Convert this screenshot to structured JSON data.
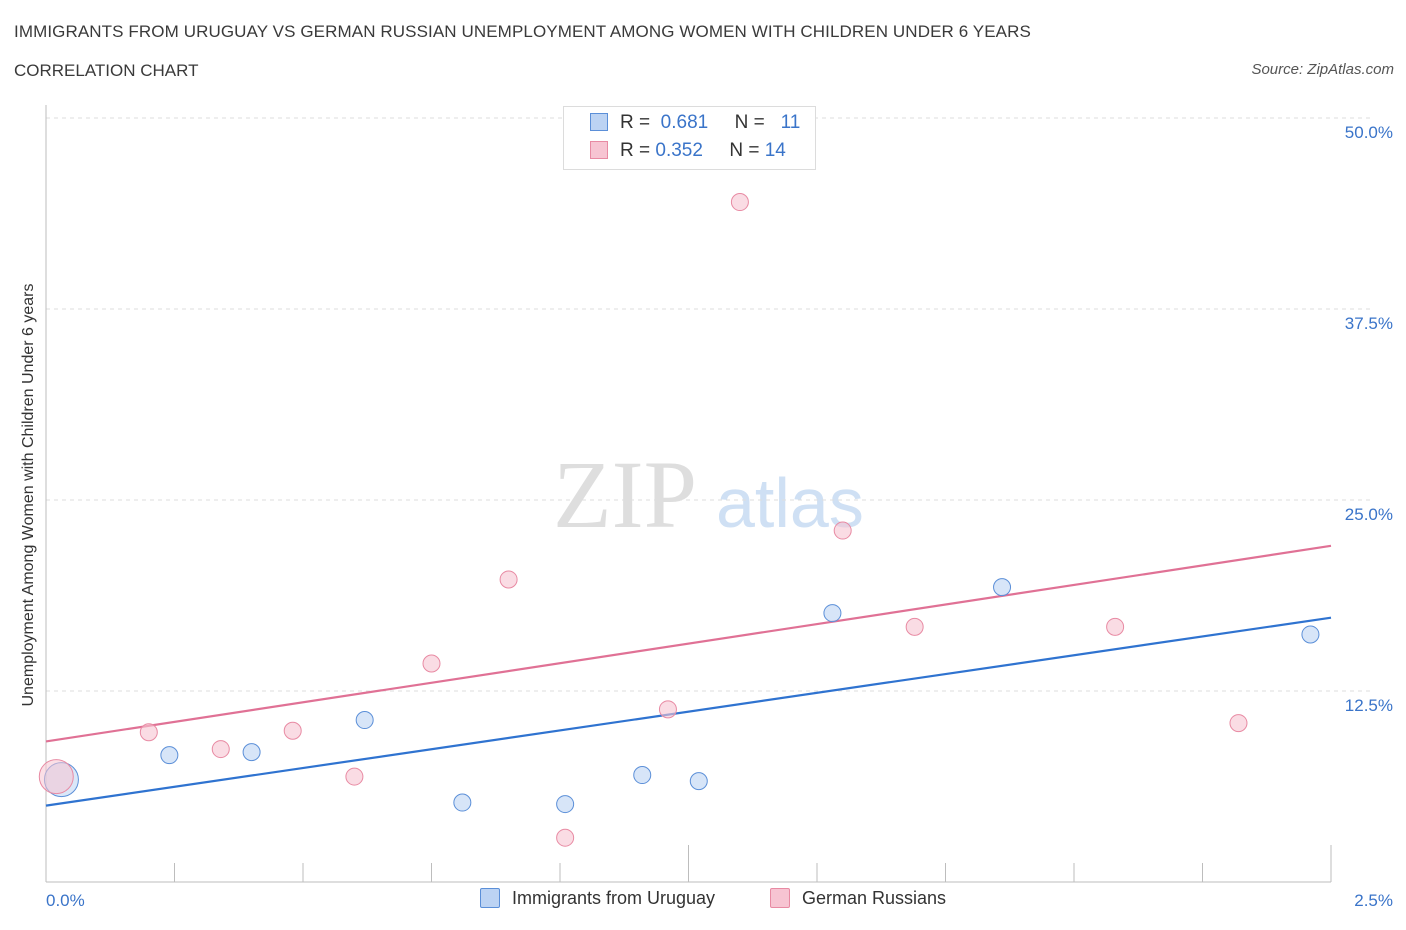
{
  "chart_data": {
    "type": "scatter",
    "title": "IMMIGRANTS FROM URUGUAY VS GERMAN RUSSIAN UNEMPLOYMENT AMONG WOMEN WITH CHILDREN UNDER 6 YEARS",
    "subtitle": "CORRELATION CHART",
    "source": "Source: ZipAtlas.com",
    "ylabel": "Unemployment Among Women with Children Under 6 years",
    "xlim": [
      0,
      2.5
    ],
    "ylim": [
      0,
      50
    ],
    "x_tick_labels": [
      "0.0%",
      "2.5%"
    ],
    "y_ticks": [
      {
        "value": 12.5,
        "label": "12.5%"
      },
      {
        "value": 25.0,
        "label": "25.0%"
      },
      {
        "value": 37.5,
        "label": "37.5%"
      },
      {
        "value": 50.0,
        "label": "50.0%"
      }
    ],
    "series": [
      {
        "name": "Immigrants from Uruguay",
        "color": "#5b8fd8",
        "fill": "#bcd3f3",
        "line_color": "#2f73d0",
        "R": "0.681",
        "N": "11",
        "points": [
          {
            "x": 0.03,
            "y": 6.7,
            "big": true
          },
          {
            "x": 0.24,
            "y": 8.3
          },
          {
            "x": 0.4,
            "y": 8.5
          },
          {
            "x": 0.62,
            "y": 10.6
          },
          {
            "x": 0.81,
            "y": 5.2
          },
          {
            "x": 1.01,
            "y": 5.1
          },
          {
            "x": 1.16,
            "y": 7.0
          },
          {
            "x": 1.27,
            "y": 6.6
          },
          {
            "x": 1.53,
            "y": 17.6
          },
          {
            "x": 1.86,
            "y": 19.3
          },
          {
            "x": 2.46,
            "y": 16.2
          }
        ],
        "trend": {
          "x0": 0.0,
          "y0": 5.0,
          "x1": 2.5,
          "y1": 17.3
        }
      },
      {
        "name": "German Russians",
        "color": "#e88aa3",
        "fill": "#f7c4d2",
        "line_color": "#e07195",
        "R": "0.352",
        "N": "14",
        "points": [
          {
            "x": 0.02,
            "y": 6.9,
            "big": true
          },
          {
            "x": 0.2,
            "y": 9.8
          },
          {
            "x": 0.34,
            "y": 8.7
          },
          {
            "x": 0.48,
            "y": 9.9
          },
          {
            "x": 0.6,
            "y": 6.9
          },
          {
            "x": 0.75,
            "y": 14.3
          },
          {
            "x": 0.9,
            "y": 19.8
          },
          {
            "x": 1.01,
            "y": 2.9
          },
          {
            "x": 1.21,
            "y": 11.3
          },
          {
            "x": 1.35,
            "y": 44.5
          },
          {
            "x": 1.55,
            "y": 23.0
          },
          {
            "x": 1.69,
            "y": 16.7
          },
          {
            "x": 2.08,
            "y": 16.7
          },
          {
            "x": 2.32,
            "y": 10.4
          }
        ],
        "trend": {
          "x0": 0.0,
          "y0": 9.2,
          "x1": 2.5,
          "y1": 22.0
        }
      }
    ],
    "watermark": {
      "zip": "ZIP",
      "atlas": "atlas"
    },
    "legend_labels": {
      "r_prefix": "R =",
      "n_prefix": "N ="
    }
  }
}
